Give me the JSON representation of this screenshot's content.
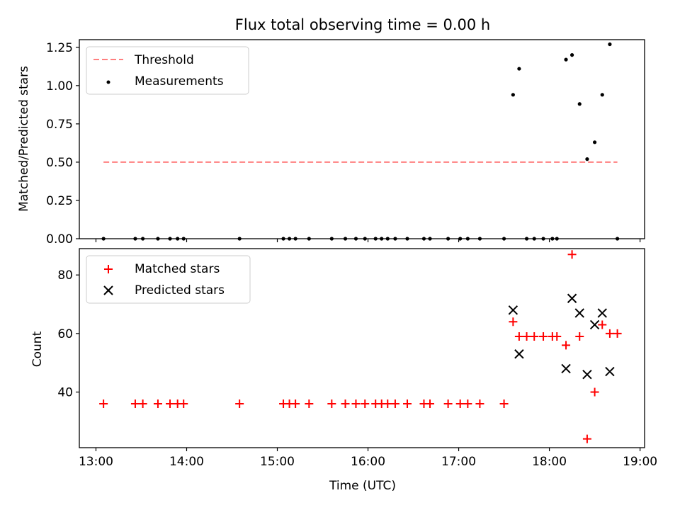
{
  "chart_data": [
    {
      "type": "scatter",
      "title": "Flux total observing time = 0.00 h",
      "xlabel": "",
      "ylabel": "Matched/Predicted stars",
      "xlim": [
        "12:49",
        "19:03"
      ],
      "ylim": [
        0,
        1.3
      ],
      "yticks": [
        "0.00",
        "0.25",
        "0.50",
        "0.75",
        "1.00",
        "1.25"
      ],
      "grid": false,
      "legend": {
        "placement": "top-left",
        "entries": [
          "Threshold",
          "Measurements"
        ]
      },
      "series": [
        {
          "name": "Threshold",
          "style": "dashed-line",
          "color": "#ff7f7f",
          "x": [
            "13:05",
            "18:45"
          ],
          "y": [
            0.5,
            0.5
          ]
        },
        {
          "name": "Measurements",
          "style": "dot",
          "color": "#000000",
          "x": [
            "13:05",
            "13:26",
            "13:31",
            "13:41",
            "13:49",
            "13:54",
            "13:58",
            "14:35",
            "15:04",
            "15:08",
            "15:12",
            "15:21",
            "15:36",
            "15:45",
            "15:52",
            "15:58",
            "16:05",
            "16:09",
            "16:13",
            "16:18",
            "16:26",
            "16:37",
            "16:41",
            "16:53",
            "17:01",
            "17:06",
            "17:14",
            "17:30",
            "17:36",
            "17:40",
            "17:45",
            "17:50",
            "17:56",
            "18:02",
            "18:05",
            "18:11",
            "18:15",
            "18:20",
            "18:25",
            "18:30",
            "18:35",
            "18:40",
            "18:45"
          ],
          "y": [
            0,
            0,
            0,
            0,
            0,
            0,
            0,
            0,
            0,
            0,
            0,
            0,
            0,
            0,
            0,
            0,
            0,
            0,
            0,
            0,
            0,
            0,
            0,
            0,
            0,
            0,
            0,
            0,
            0.94,
            1.11,
            0,
            0,
            0,
            0,
            0,
            1.17,
            1.2,
            0.88,
            0.52,
            0.63,
            0.94,
            1.27,
            0
          ]
        }
      ]
    },
    {
      "type": "scatter",
      "title": "",
      "xlabel": "Time (UTC)",
      "ylabel": "Count",
      "xlim": [
        "12:49",
        "19:03"
      ],
      "ylim": [
        21,
        89
      ],
      "xticks": [
        "13:00",
        "14:00",
        "15:00",
        "16:00",
        "17:00",
        "18:00",
        "19:00"
      ],
      "yticks": [
        "40",
        "60",
        "80"
      ],
      "grid": false,
      "legend": {
        "placement": "top-left",
        "entries": [
          "Matched stars",
          "Predicted stars"
        ]
      },
      "series": [
        {
          "name": "Matched stars",
          "style": "plus",
          "color": "#ff0000",
          "x": [
            "13:05",
            "13:26",
            "13:31",
            "13:41",
            "13:49",
            "13:54",
            "13:58",
            "14:35",
            "15:04",
            "15:08",
            "15:12",
            "15:21",
            "15:36",
            "15:45",
            "15:52",
            "15:58",
            "16:05",
            "16:09",
            "16:13",
            "16:18",
            "16:26",
            "16:37",
            "16:41",
            "16:53",
            "17:01",
            "17:06",
            "17:14",
            "17:30",
            "17:36",
            "17:40",
            "17:45",
            "17:50",
            "17:56",
            "18:02",
            "18:05",
            "18:11",
            "18:15",
            "18:20",
            "18:25",
            "18:30",
            "18:35",
            "18:40",
            "18:45"
          ],
          "y": [
            36,
            36,
            36,
            36,
            36,
            36,
            36,
            36,
            36,
            36,
            36,
            36,
            36,
            36,
            36,
            36,
            36,
            36,
            36,
            36,
            36,
            36,
            36,
            36,
            36,
            36,
            36,
            36,
            64,
            59,
            59,
            59,
            59,
            59,
            59,
            56,
            87,
            59,
            24,
            40,
            63,
            60,
            60
          ]
        },
        {
          "name": "Predicted stars",
          "style": "x",
          "color": "#000000",
          "x": [
            "17:36",
            "17:40",
            "18:11",
            "18:15",
            "18:20",
            "18:25",
            "18:30",
            "18:35",
            "18:40"
          ],
          "y": [
            68,
            53,
            48,
            72,
            67,
            46,
            63,
            67,
            47
          ]
        }
      ]
    }
  ]
}
